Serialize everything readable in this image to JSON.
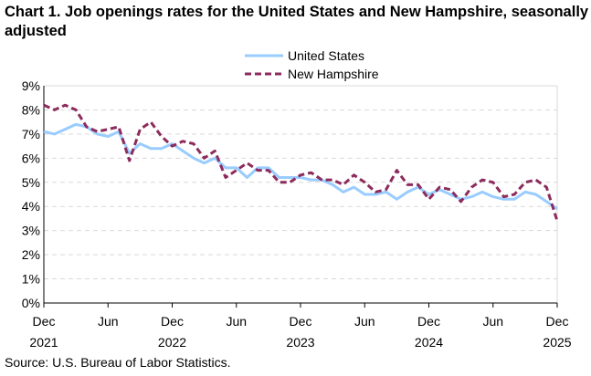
{
  "chart_data": {
    "type": "line",
    "title": "Chart 1. Job openings rates for the United States and New Hampshire, seasonally adjusted",
    "source": "Source: U.S. Bureau of Labor Statistics.",
    "xlabel": "",
    "ylabel": "",
    "ylim": [
      0,
      9
    ],
    "yticks": [
      "0%",
      "1%",
      "2%",
      "3%",
      "4%",
      "5%",
      "6%",
      "7%",
      "8%",
      "9%"
    ],
    "xticks": [
      {
        "month": "Dec",
        "year": "2021"
      },
      {
        "month": "Jun",
        "year": ""
      },
      {
        "month": "Dec",
        "year": "2022"
      },
      {
        "month": "Jun",
        "year": ""
      },
      {
        "month": "Dec",
        "year": "2023"
      },
      {
        "month": "Jun",
        "year": ""
      },
      {
        "month": "Dec",
        "year": "2024"
      },
      {
        "month": "Jun",
        "year": ""
      },
      {
        "month": "Dec",
        "year": "2025"
      }
    ],
    "x_range": [
      "Dec 2021",
      "Dec 2025"
    ],
    "grid": "horizontal dashed",
    "legend": "top-right",
    "series": [
      {
        "name": "United States",
        "color": "#99ccff",
        "style": "solid",
        "values": [
          7.1,
          7.0,
          7.2,
          7.4,
          7.3,
          7.0,
          6.9,
          7.1,
          6.2,
          6.6,
          6.4,
          6.4,
          6.6,
          6.3,
          6.0,
          5.8,
          6.0,
          5.6,
          5.6,
          5.2,
          5.6,
          5.6,
          5.2,
          5.2,
          5.2,
          5.1,
          5.1,
          4.9,
          4.6,
          4.8,
          4.5,
          4.5,
          4.6,
          4.3,
          4.6,
          4.8,
          4.5,
          4.7,
          4.5,
          4.3,
          4.4,
          4.6,
          4.4,
          4.3,
          4.3,
          4.6,
          4.5,
          4.2,
          3.9
        ]
      },
      {
        "name": "New Hampshire",
        "color": "#8c2b5c",
        "style": "dashed",
        "values": [
          8.2,
          8.0,
          8.2,
          8.0,
          7.3,
          7.1,
          7.2,
          7.3,
          5.9,
          7.2,
          7.5,
          6.9,
          6.5,
          6.7,
          6.6,
          6.0,
          6.3,
          5.2,
          5.5,
          5.8,
          5.5,
          5.5,
          5.0,
          5.0,
          5.3,
          5.4,
          5.1,
          5.1,
          4.9,
          5.3,
          5.0,
          4.6,
          4.7,
          5.5,
          4.9,
          4.9,
          4.3,
          4.8,
          4.7,
          4.2,
          4.8,
          5.1,
          5.0,
          4.4,
          4.5,
          5.0,
          5.1,
          4.8,
          3.4
        ]
      }
    ]
  }
}
